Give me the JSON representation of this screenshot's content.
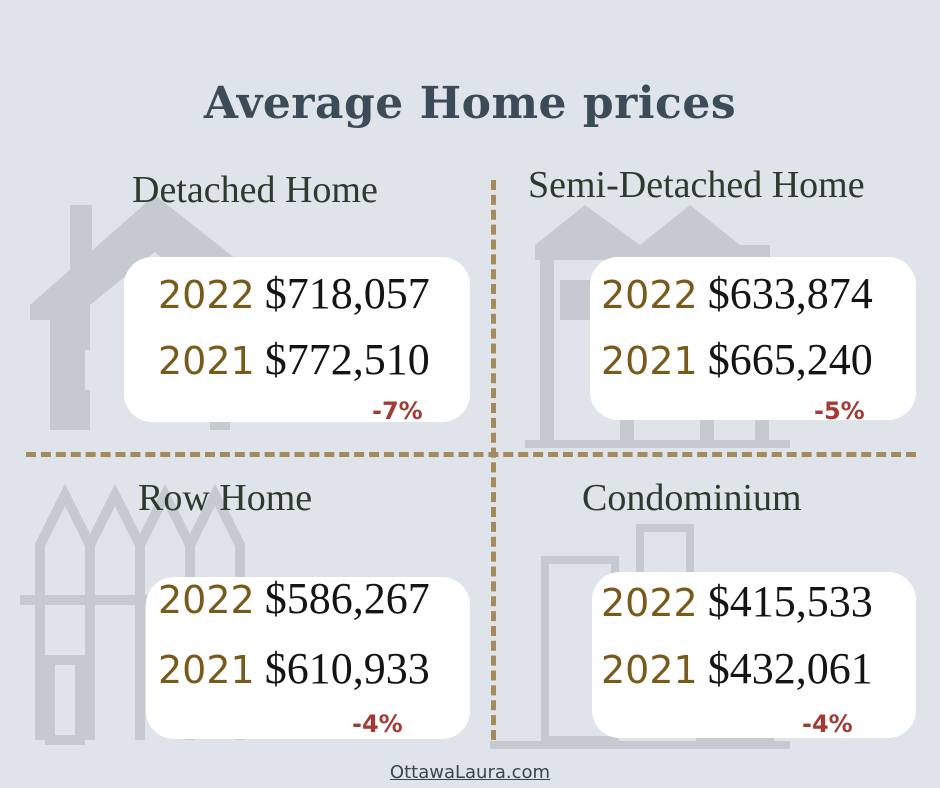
{
  "title": "Average Home prices",
  "quadrants": [
    {
      "label": "Detached Home",
      "rows": [
        {
          "year": "2022",
          "price": "$718,057"
        },
        {
          "year": "2021",
          "price": "$772,510"
        }
      ],
      "change": "-7%",
      "icon": "detached-house-icon"
    },
    {
      "label": "Semi-Detached Home",
      "rows": [
        {
          "year": "2022",
          "price": "$633,874"
        },
        {
          "year": "2021",
          "price": "$665,240"
        }
      ],
      "change": "-5%",
      "icon": "semi-detached-house-icon"
    },
    {
      "label": "Row Home",
      "rows": [
        {
          "year": "2022",
          "price": "$586,267"
        },
        {
          "year": "2021",
          "price": "$610,933"
        }
      ],
      "change": "-4%",
      "icon": "row-houses-icon"
    },
    {
      "label": "Condominium",
      "rows": [
        {
          "year": "2022",
          "price": "$415,533"
        },
        {
          "year": "2021",
          "price": "$432,061"
        }
      ],
      "change": "-4%",
      "icon": "condo-building-icon"
    }
  ],
  "footer": "OttawaLaura.com",
  "colors": {
    "background": "#dfe4ea",
    "title": "#3b4b57",
    "divider": "#a58b5c",
    "year": "#7a5a1a",
    "change": "#a33a33",
    "card": "#ffffff"
  }
}
